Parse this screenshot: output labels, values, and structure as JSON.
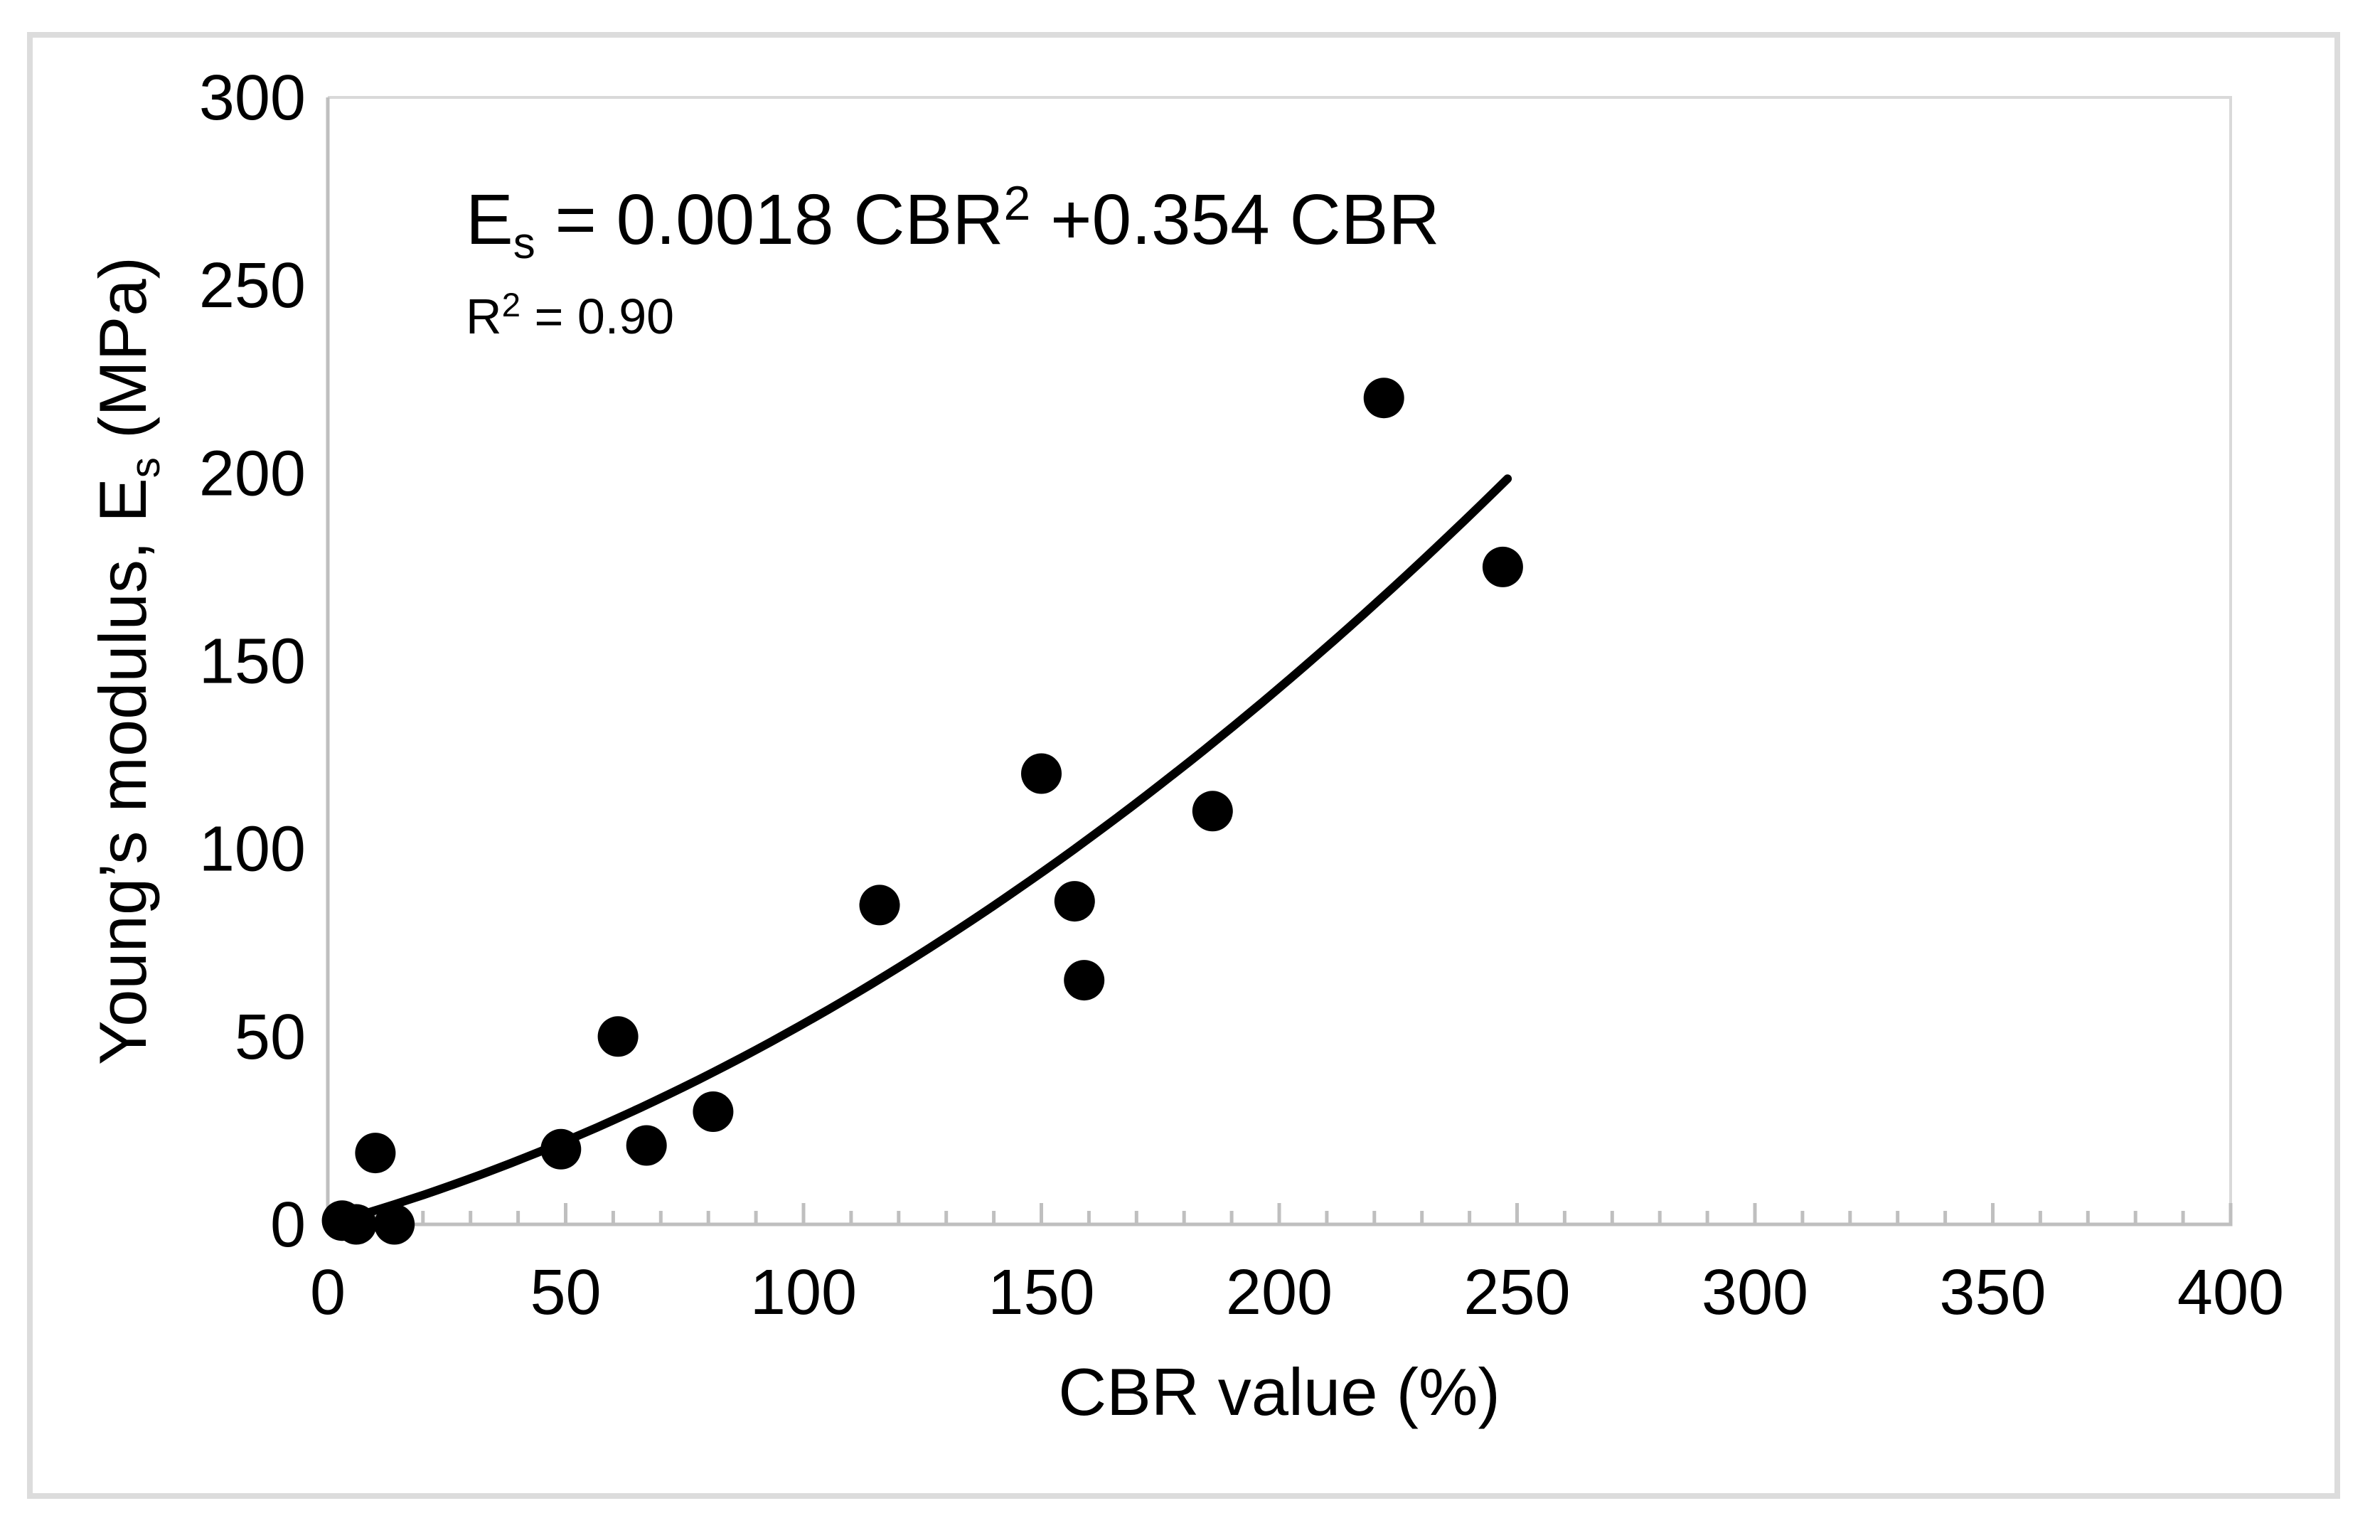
{
  "chart_data": {
    "type": "scatter",
    "title": "",
    "xlabel": "CBR value (%)",
    "ylabel_segments": [
      {
        "t": "Young’s modulus, E"
      },
      {
        "t": "s",
        "style": "sub"
      },
      {
        "t": " (MPa)"
      }
    ],
    "xlim": [
      0,
      400
    ],
    "ylim": [
      0,
      300
    ],
    "x_major_ticks": [
      0,
      50,
      100,
      150,
      200,
      250,
      300,
      350,
      400
    ],
    "x_minor_tick_step": 10,
    "y_ticks": [
      0,
      50,
      100,
      150,
      200,
      250,
      300
    ],
    "grid": false,
    "legend": "none",
    "points": [
      [
        3,
        1
      ],
      [
        6,
        0
      ],
      [
        14,
        0
      ],
      [
        10,
        19
      ],
      [
        49,
        20
      ],
      [
        61,
        50
      ],
      [
        67,
        21
      ],
      [
        81,
        30
      ],
      [
        116,
        85
      ],
      [
        150,
        120
      ],
      [
        157,
        86
      ],
      [
        159,
        65
      ],
      [
        186,
        110
      ],
      [
        222,
        220
      ],
      [
        247,
        175
      ]
    ],
    "trendline": {
      "type": "quadratic",
      "a2": 0.0018,
      "a1": 0.354,
      "a0": 0,
      "x_start": 5,
      "x_end": 248
    },
    "equation_segments": [
      {
        "t": "E"
      },
      {
        "t": "s",
        "style": "sub"
      },
      {
        "t": " = 0.0018 CBR"
      },
      {
        "t": "2",
        "style": "sup"
      },
      {
        "t": " +0.354 CBR"
      }
    ],
    "r_squared_segments": [
      {
        "t": "R"
      },
      {
        "t": "2",
        "style": "sup"
      },
      {
        "t": " = 0.90"
      }
    ],
    "colors": {
      "marker": "#000000",
      "trendline": "#000000",
      "axis": "#bfbfbf",
      "frame": "#d9d9d9",
      "border": "#dcdcdc",
      "text": "#000000"
    }
  }
}
